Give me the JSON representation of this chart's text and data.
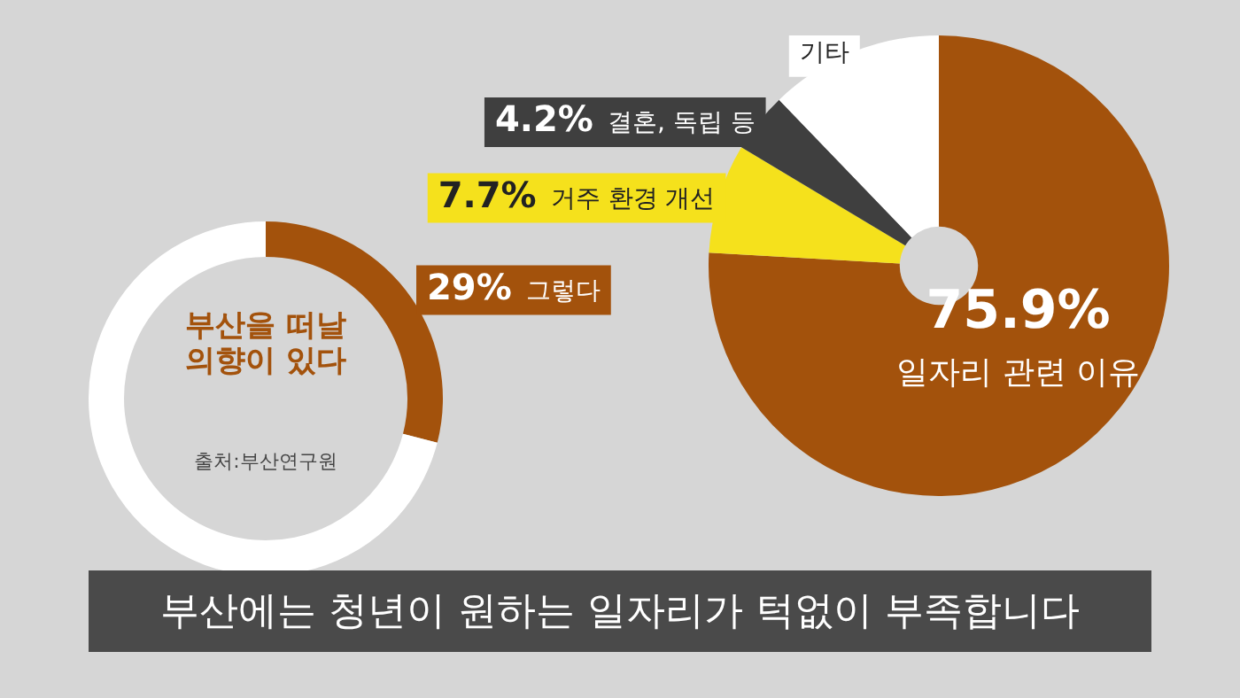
{
  "chart_data": [
    {
      "type": "donut",
      "title": "부산을 떠날 의향이 있다",
      "categories": [
        "그렇다",
        null
      ],
      "values": [
        29,
        71
      ],
      "colors": [
        "#a3520c",
        "#ffffff"
      ],
      "value_labels": [
        "29%",
        null
      ],
      "legend": false,
      "annotations": [
        "출처:부산연구원",
        "부산에는 청년이 원하는 일자리가 턱없이 부족합니다"
      ]
    },
    {
      "type": "donut",
      "categories": [
        "일자리 관련 이유",
        "거주 환경 개선",
        "결혼, 독립 등",
        "기타"
      ],
      "values": [
        75.9,
        7.7,
        4.2,
        12.2
      ],
      "colors": [
        "#a3520c",
        "#f5e11c",
        "#3f3f3f",
        "#ffffff"
      ],
      "value_labels": [
        "75.9%",
        "7.7%",
        "4.2%",
        null
      ],
      "legend": false
    }
  ]
}
